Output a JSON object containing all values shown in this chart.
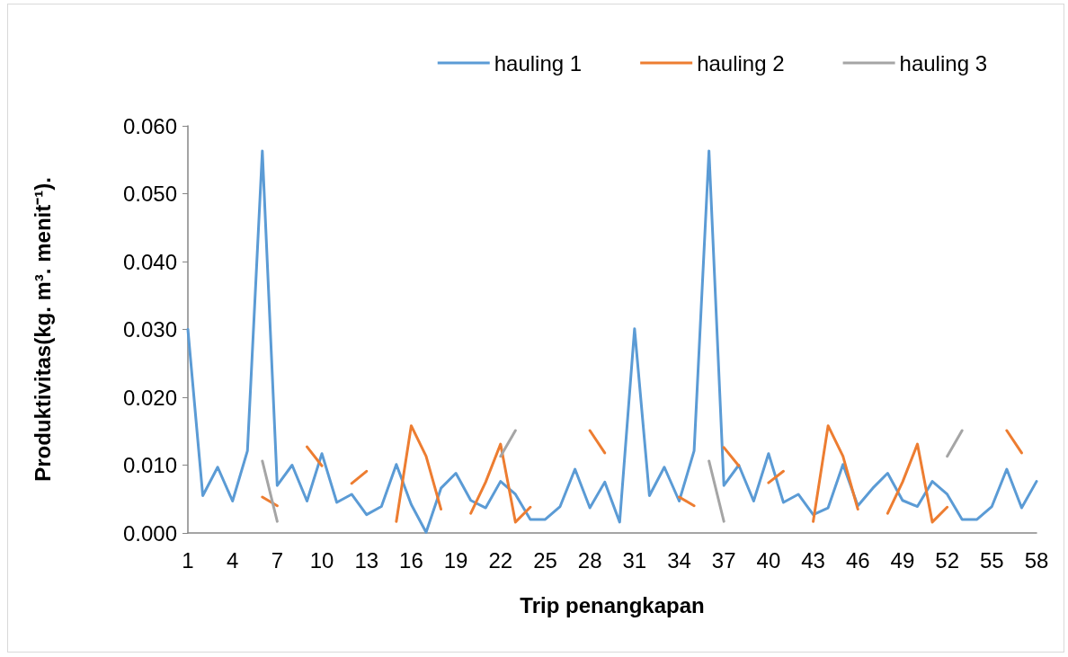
{
  "chart_data": {
    "type": "line",
    "xlabel": "Trip penangkapan",
    "ylabel": "Produktivitas(kg. m³. menit⁻¹).",
    "categories": [
      "1",
      null,
      null,
      "4",
      null,
      null,
      "7",
      null,
      null,
      "10",
      null,
      null,
      "13",
      null,
      null,
      "16",
      null,
      null,
      "19",
      null,
      null,
      "22",
      null,
      null,
      "25",
      null,
      null,
      "28",
      null,
      null,
      "31",
      null,
      null,
      "34",
      null,
      null,
      "37",
      null,
      null,
      "40",
      null,
      null,
      "43",
      null,
      null,
      "46",
      null,
      null,
      "49",
      null,
      null,
      "52",
      null,
      null,
      "55",
      null,
      null,
      "58"
    ],
    "series": [
      {
        "name": "hauling 1",
        "color": "#5b9bd5",
        "values": [
          0.03,
          0.0055,
          0.0097,
          0.0047,
          0.0121,
          0.0563,
          0.007,
          0.01,
          0.0047,
          0.0117,
          0.0045,
          0.0057,
          0.0027,
          0.0039,
          0.0101,
          0.0042,
          0.0001,
          0.0066,
          0.0088,
          0.0048,
          0.0037,
          0.0076,
          0.0057,
          0.002,
          0.002,
          0.0039,
          0.0094,
          0.0037,
          0.0075,
          0.0016,
          0.0301,
          0.0055,
          0.0097,
          0.0047,
          0.0121,
          0.0563,
          0.007,
          0.01,
          0.0047,
          0.0117,
          0.0045,
          0.0057,
          0.0027,
          0.0037,
          0.0101,
          0.004,
          0.0066,
          0.0088,
          0.0048,
          0.0039,
          0.0076,
          0.0057,
          0.002,
          0.002,
          0.0039,
          0.0094,
          0.0037,
          0.0076
        ]
      },
      {
        "name": "hauling 2",
        "color": "#ed7d31",
        "values": [
          null,
          null,
          null,
          null,
          null,
          0.0053,
          0.004,
          null,
          0.0127,
          0.0099,
          null,
          0.0073,
          0.0091,
          null,
          0.0017,
          0.0158,
          0.0113,
          0.0035,
          null,
          0.0029,
          0.0075,
          0.0131,
          0.0016,
          0.0038,
          null,
          null,
          null,
          0.0151,
          0.0118,
          null,
          null,
          null,
          null,
          0.0053,
          0.004,
          null,
          0.0126,
          0.0099,
          null,
          0.0074,
          0.0091,
          null,
          0.0017,
          0.0158,
          0.0113,
          0.0035,
          null,
          0.0029,
          0.0075,
          0.0131,
          0.0016,
          0.0038,
          null,
          null,
          null,
          0.0151,
          0.0118,
          null
        ]
      },
      {
        "name": "hauling 3",
        "color": "#a5a5a5",
        "values": [
          null,
          null,
          null,
          null,
          null,
          0.0106,
          0.0017,
          null,
          null,
          null,
          null,
          null,
          null,
          null,
          null,
          null,
          null,
          null,
          null,
          null,
          null,
          0.0113,
          0.0151,
          null,
          null,
          null,
          null,
          null,
          null,
          null,
          null,
          null,
          null,
          null,
          null,
          0.0106,
          0.0017,
          null,
          null,
          null,
          null,
          null,
          null,
          null,
          null,
          null,
          null,
          null,
          null,
          null,
          null,
          0.0113,
          0.0151,
          null,
          null,
          null,
          null,
          null
        ]
      }
    ],
    "ylim": [
      0,
      0.06
    ],
    "yticks": [
      {
        "value": 0,
        "label": "0.000"
      },
      {
        "value": 0.01,
        "label": "0.010"
      },
      {
        "value": 0.02,
        "label": "0.020"
      },
      {
        "value": 0.03,
        "label": "0.030"
      },
      {
        "value": 0.04,
        "label": "0.040"
      },
      {
        "value": 0.05,
        "label": "0.050"
      },
      {
        "value": 0.06,
        "label": "0.060"
      }
    ],
    "grid": false,
    "legend": "top right",
    "marker": "none",
    "line_style": "solid"
  }
}
